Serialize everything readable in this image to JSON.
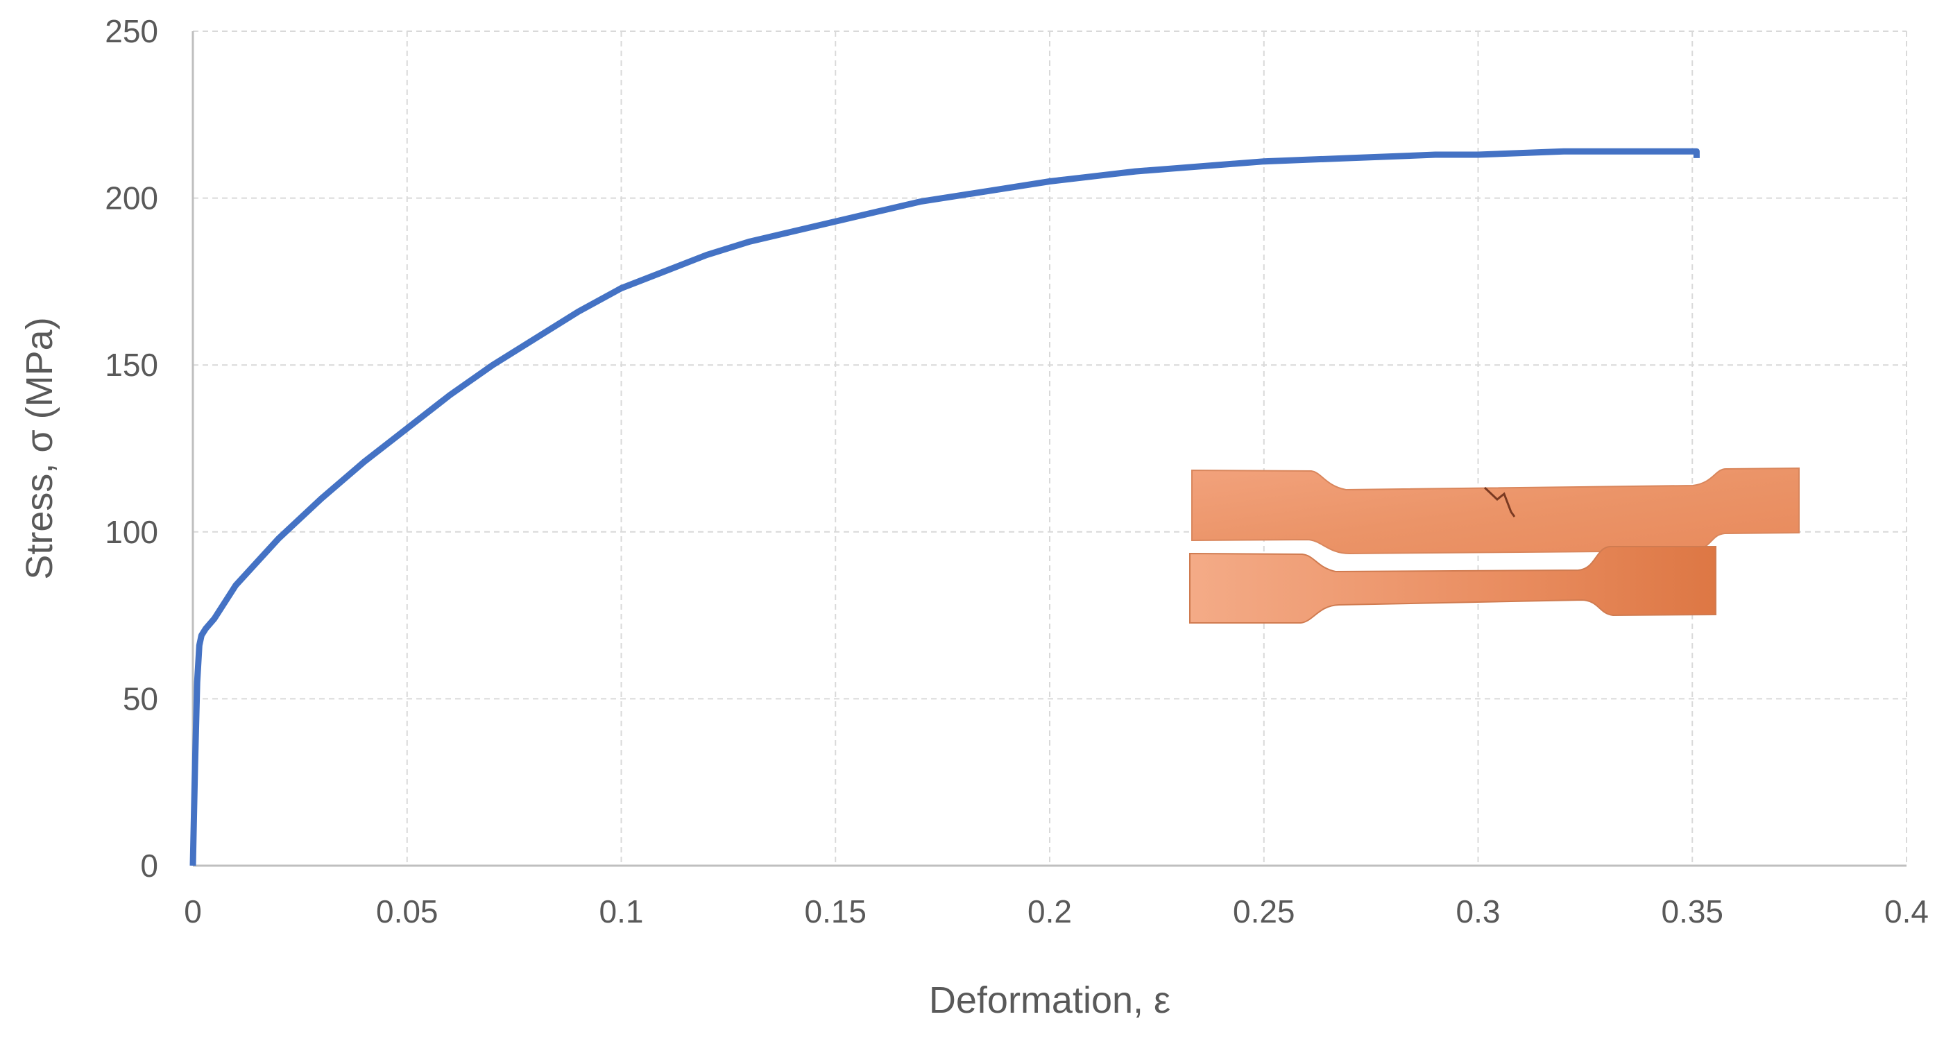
{
  "chart_data": {
    "type": "line",
    "title": "",
    "xlabel": "Deformation, ε",
    "ylabel": "Stress, σ (MPa)",
    "xlim": [
      0,
      0.4
    ],
    "ylim": [
      0,
      250
    ],
    "x_ticks": [
      "0",
      "0.05",
      "0.1",
      "0.15",
      "0.2",
      "0.25",
      "0.3",
      "0.35",
      "0.4"
    ],
    "x_tick_values": [
      0,
      0.05,
      0.1,
      0.15,
      0.2,
      0.25,
      0.3,
      0.35,
      0.4
    ],
    "y_ticks": [
      "0",
      "50",
      "100",
      "150",
      "200",
      "250"
    ],
    "y_tick_values": [
      0,
      50,
      100,
      150,
      200,
      250
    ],
    "grid": true,
    "legend": "none",
    "series": [
      {
        "color": "#4472C4",
        "x": [
          0,
          0.0005,
          0.001,
          0.0015,
          0.002,
          0.003,
          0.005,
          0.01,
          0.02,
          0.03,
          0.04,
          0.05,
          0.06,
          0.07,
          0.08,
          0.09,
          0.1,
          0.11,
          0.12,
          0.13,
          0.14,
          0.15,
          0.16,
          0.17,
          0.18,
          0.19,
          0.2,
          0.21,
          0.22,
          0.23,
          0.24,
          0.25,
          0.26,
          0.27,
          0.28,
          0.29,
          0.3,
          0.31,
          0.32,
          0.33,
          0.34,
          0.35,
          0.351,
          0.351
        ],
        "y": [
          0,
          30,
          55,
          66,
          69,
          71,
          74,
          84,
          98,
          110,
          121,
          131,
          141,
          150,
          158,
          166,
          173,
          178,
          183,
          187,
          190,
          193,
          196,
          199,
          201,
          203,
          205,
          206.5,
          208,
          209,
          210,
          211,
          211.5,
          212,
          212.5,
          213,
          213,
          213.5,
          214,
          214,
          214,
          214,
          214,
          212
        ]
      }
    ]
  },
  "image": {
    "description_icon": "tensile-specimens-photo"
  }
}
